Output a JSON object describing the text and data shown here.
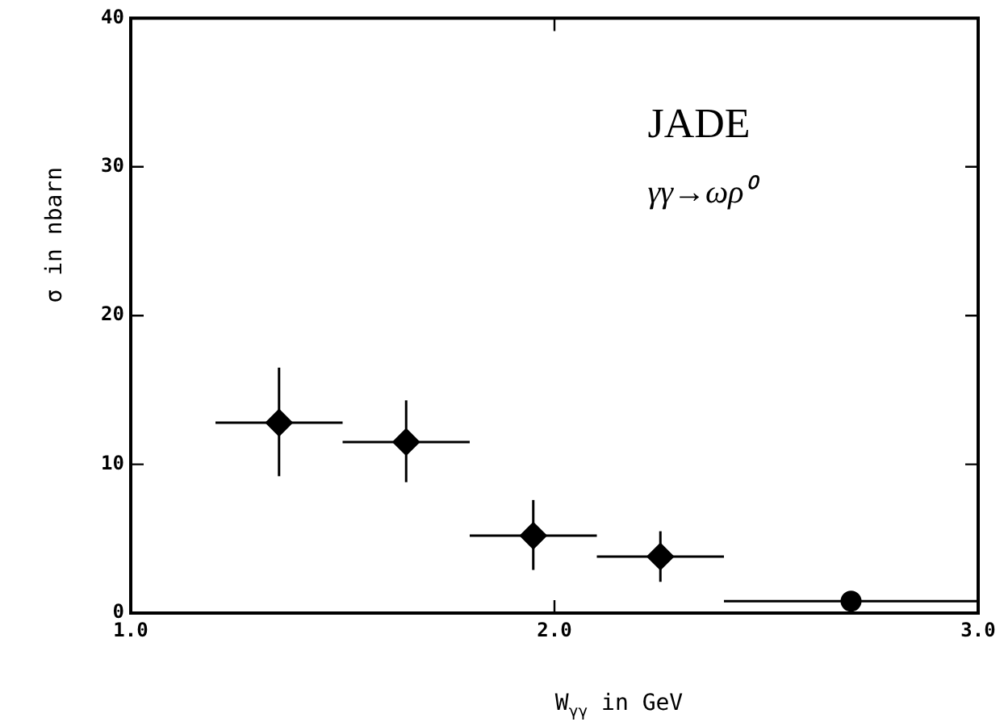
{
  "chart_data": {
    "type": "scatter",
    "title": "JADE",
    "subtitle": "γγ→ωρ⁰",
    "xlabel": "W$_{γγ}$ in GeV",
    "ylabel": "σ in nbarn",
    "xlim": [
      1.0,
      3.0
    ],
    "ylim": [
      0,
      40
    ],
    "xticks": [
      {
        "value": 1,
        "label": "1.0"
      },
      {
        "value": 2,
        "label": "2.0"
      },
      {
        "value": 3,
        "label": "3.0"
      }
    ],
    "yticks": [
      0,
      10,
      20,
      30,
      40
    ],
    "grid": false,
    "legend": false,
    "series": [
      {
        "color": "#000000",
        "marker": "diamond",
        "x": [
          1.35,
          1.65,
          1.95,
          2.25
        ],
        "values": [
          12.8,
          11.5,
          5.2,
          3.8
        ],
        "errors": [
          [
            9.2,
            16.5
          ],
          [
            8.8,
            14.3
          ],
          [
            2.9,
            7.6
          ],
          [
            2.1,
            5.5
          ]
        ],
        "xerrors": [
          [
            1.2,
            1.5
          ],
          [
            1.5,
            1.8
          ],
          [
            1.8,
            2.1
          ],
          [
            2.1,
            2.4
          ]
        ]
      },
      {
        "color": "#000000",
        "marker": "circle",
        "x": [
          2.7
        ],
        "values": [
          0.8
        ],
        "errors": [
          null
        ],
        "xerrors": [
          [
            2.4,
            3.0
          ]
        ]
      }
    ]
  }
}
